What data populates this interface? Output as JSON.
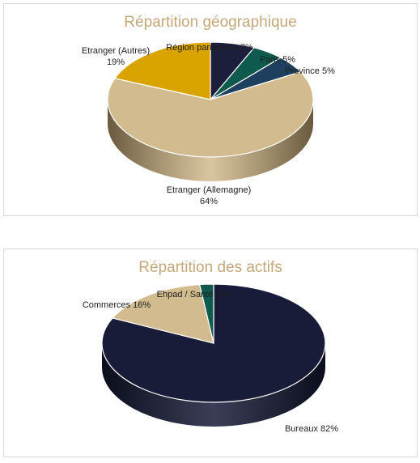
{
  "chart_data": [
    {
      "type": "pie",
      "title": "Répartition géographique",
      "slices": [
        {
          "label": "Région parisienne",
          "value": 7,
          "display": "Région parisienne 7%",
          "color": "#1b1f3b",
          "side": "#0d1020"
        },
        {
          "label": "Paris",
          "value": 5,
          "display": "Paris  5%",
          "color": "#0f5a4e",
          "side": "#07342c"
        },
        {
          "label": "Province",
          "value": 5,
          "display": "Province 5%",
          "color": "#1f3f5f",
          "side": "#102538"
        },
        {
          "label": "Etranger (Allemagne)",
          "value": 64,
          "display": "Etranger (Allemagne)\n64%",
          "color": "#d2bb8e",
          "side": "#6a5a3e"
        },
        {
          "label": "Etranger (Autres)",
          "value": 19,
          "display": "Etranger (Autres)\n19%",
          "color": "#d9a300",
          "side": "#7a5c00"
        }
      ]
    },
    {
      "type": "pie",
      "title": "Répartition des actifs",
      "slices": [
        {
          "label": "Bureaux",
          "value": 82,
          "display": "Bureaux 82%",
          "color": "#181c38",
          "side": "#0b0d1c"
        },
        {
          "label": "Commerces",
          "value": 16,
          "display": "Commerces 16%",
          "color": "#d2bb8e",
          "side": "#6a5a3e"
        },
        {
          "label": "Ehpad / Santé",
          "value": 2,
          "display": "Ehpad / Santé 2%",
          "color": "#0f5a4e",
          "side": "#07342c"
        }
      ]
    }
  ]
}
